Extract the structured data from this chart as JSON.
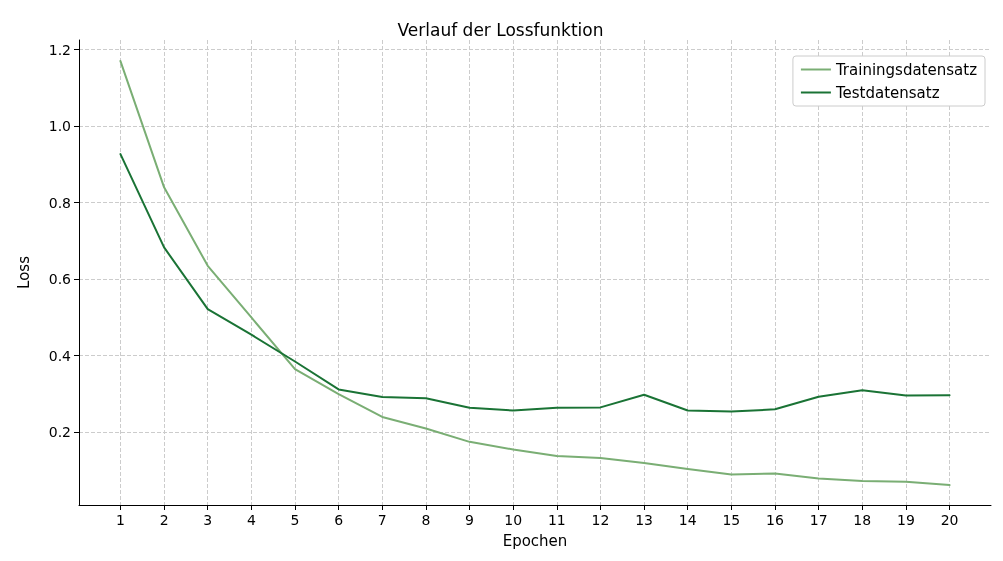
{
  "chart_data": {
    "type": "line",
    "title": "Verlauf der Lossfunktion",
    "xlabel": "Epochen",
    "ylabel": "Loss",
    "x": [
      1,
      2,
      3,
      4,
      5,
      6,
      7,
      8,
      9,
      10,
      11,
      12,
      13,
      14,
      15,
      16,
      17,
      18,
      19,
      20
    ],
    "series": [
      {
        "name": "Trainingsdatensatz",
        "color": "#7aae74",
        "values": [
          1.17,
          0.84,
          0.635,
          0.5,
          0.365,
          0.3,
          0.24,
          0.21,
          0.175,
          0.155,
          0.138,
          0.133,
          0.12,
          0.104,
          0.09,
          0.092,
          0.079,
          0.073,
          0.071,
          0.062
        ]
      },
      {
        "name": "Testdatensatz",
        "color": "#1a7335",
        "values": [
          0.927,
          0.683,
          0.522,
          0.455,
          0.385,
          0.312,
          0.292,
          0.289,
          0.264,
          0.257,
          0.264,
          0.265,
          0.298,
          0.257,
          0.254,
          0.26,
          0.293,
          0.31,
          0.296,
          0.297
        ]
      }
    ],
    "xlim": [
      0.05,
      20.95
    ],
    "xticks": [
      1,
      2,
      3,
      4,
      5,
      6,
      7,
      8,
      9,
      10,
      11,
      12,
      13,
      14,
      15,
      16,
      17,
      18,
      19,
      20
    ],
    "ylim": [
      0.01,
      1.225
    ],
    "yticks": [
      0.2,
      0.4,
      0.6,
      0.8,
      {
        "value": 1,
        "label": "1.0"
      },
      1.2
    ],
    "grid": true,
    "legend": "top right",
    "marker": "none",
    "line_style": "solid"
  }
}
